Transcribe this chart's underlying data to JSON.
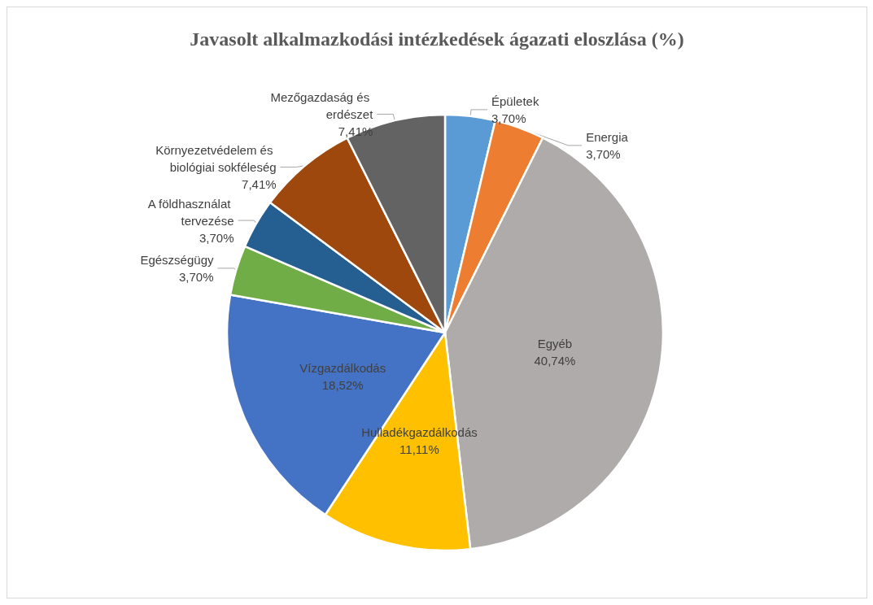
{
  "chart_data": {
    "type": "pie",
    "title": "Javasolt alkalmazkodási intézkedések ágazati eloszlása (%)",
    "categories": [
      "Épületek",
      "Energia",
      "Egyéb",
      "Hulladékgazdálkodás",
      "Vízgazdálkodás",
      "Egészségügy",
      "A földhasználat tervezése",
      "Környezetvédelem és biológiai sokféleség",
      "Mezőgazdaság és erdészet"
    ],
    "values": [
      3.7,
      3.7,
      40.74,
      11.11,
      18.52,
      3.7,
      3.7,
      7.41,
      7.41
    ],
    "value_labels": [
      "3,70%",
      "3,70%",
      "40,74%",
      "11,11%",
      "18,52%",
      "3,70%",
      "3,70%",
      "7,41%",
      "7,41%"
    ],
    "colors": [
      "#5b9bd5",
      "#ed7d31",
      "#afabab",
      "#ffc000",
      "#4472c4",
      "#70ad47",
      "#255e91",
      "#9e480e",
      "#636363"
    ],
    "legend": false
  }
}
